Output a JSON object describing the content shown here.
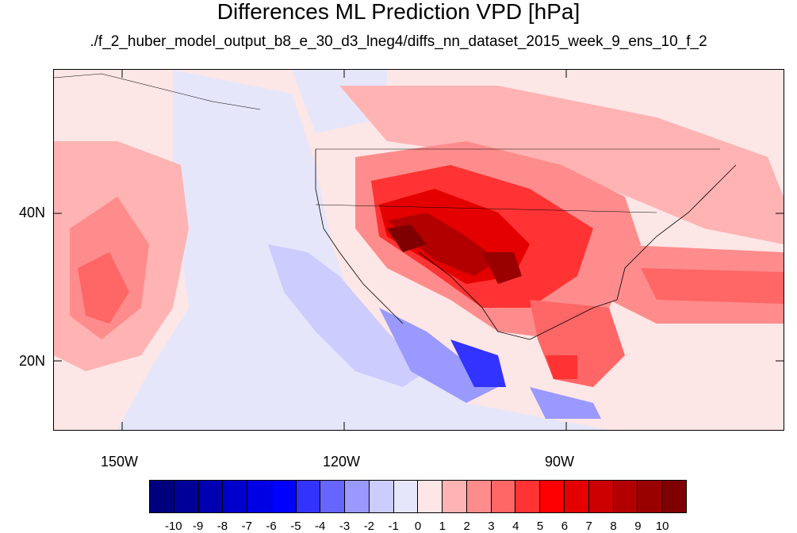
{
  "title": "Differences ML Prediction VPD [hPa]",
  "subtitle": "./f_2_huber_model_output_b8_e_30_d3_lneg4/diffs_nn_dataset_2015_week_9_ens_10_f_2",
  "lat_labels": [
    "40N",
    "20N"
  ],
  "lon_labels": [
    "150W",
    "120W",
    "90W"
  ],
  "colorbar": {
    "labels": [
      "-10",
      "-9",
      "-8",
      "-7",
      "-6",
      "-5",
      "-4",
      "-3",
      "-2",
      "-1",
      "0",
      "1",
      "2",
      "3",
      "4",
      "5",
      "6",
      "7",
      "8",
      "9",
      "10"
    ],
    "colors": [
      "#00007f",
      "#000099",
      "#0000b2",
      "#0000cc",
      "#0000e5",
      "#0000ff",
      "#3333ff",
      "#6666ff",
      "#9999ff",
      "#ccccff",
      "#e6e6fa",
      "#fde6e6",
      "#ffb3b3",
      "#ff8c8c",
      "#ff6666",
      "#ff3333",
      "#ff0000",
      "#e50000",
      "#cc0000",
      "#b20000",
      "#990000",
      "#7f0000"
    ]
  }
}
